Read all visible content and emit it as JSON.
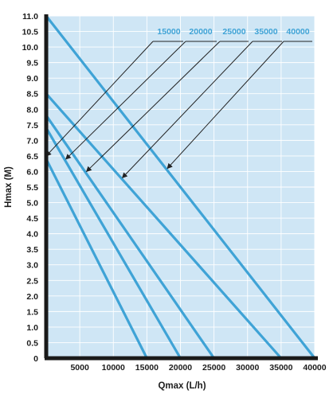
{
  "chart_data": {
    "type": "line",
    "xlabel": "Qmax (L/h)",
    "ylabel": "Hmax (M)",
    "xlim": [
      0,
      40000
    ],
    "ylim": [
      0,
      11.0
    ],
    "x_ticks": [
      5000,
      10000,
      15000,
      20000,
      25000,
      30000,
      35000,
      40000
    ],
    "y_ticks": [
      0,
      0.5,
      1.0,
      1.5,
      2.0,
      2.5,
      3.0,
      3.5,
      4.0,
      4.5,
      5.0,
      5.5,
      6.0,
      6.5,
      7.0,
      7.5,
      8.0,
      8.5,
      9.0,
      9.5,
      10.0,
      10.5,
      11.0
    ],
    "x_tick_labels": [
      "5000",
      "10000",
      "15000",
      "20000",
      "25000",
      "30000",
      "35000",
      "40000"
    ],
    "y_tick_labels": [
      "0",
      "0.5",
      "1.0",
      "1.5",
      "2.0",
      "2.5",
      "3.0",
      "3.5",
      "4.0",
      "4.5",
      "5.0",
      "5.5",
      "6.0",
      "6.5",
      "7.0",
      "7.5",
      "8.0",
      "8.5",
      "9.0",
      "9.5",
      "10.0",
      "10.5",
      "11.0"
    ],
    "grid": true,
    "legend_position": "top-right",
    "series": [
      {
        "name": "15000",
        "points": [
          [
            0,
            6.4
          ],
          [
            15000,
            0
          ]
        ]
      },
      {
        "name": "20000",
        "points": [
          [
            0,
            7.4
          ],
          [
            20000,
            0
          ]
        ]
      },
      {
        "name": "25000",
        "points": [
          [
            0,
            7.8
          ],
          [
            25000,
            0
          ]
        ]
      },
      {
        "name": "35000",
        "points": [
          [
            0,
            8.5
          ],
          [
            35000,
            0
          ]
        ]
      },
      {
        "name": "40000",
        "points": [
          [
            0,
            11.0
          ],
          [
            40000,
            0
          ]
        ]
      }
    ],
    "colors": {
      "plot_background": "#cfe6f5",
      "grid": "#ffffff",
      "line": "#3fa3d6",
      "axis": "#1a1a1a",
      "leader": "#222222",
      "legend_text": "#3fa3d6"
    }
  }
}
